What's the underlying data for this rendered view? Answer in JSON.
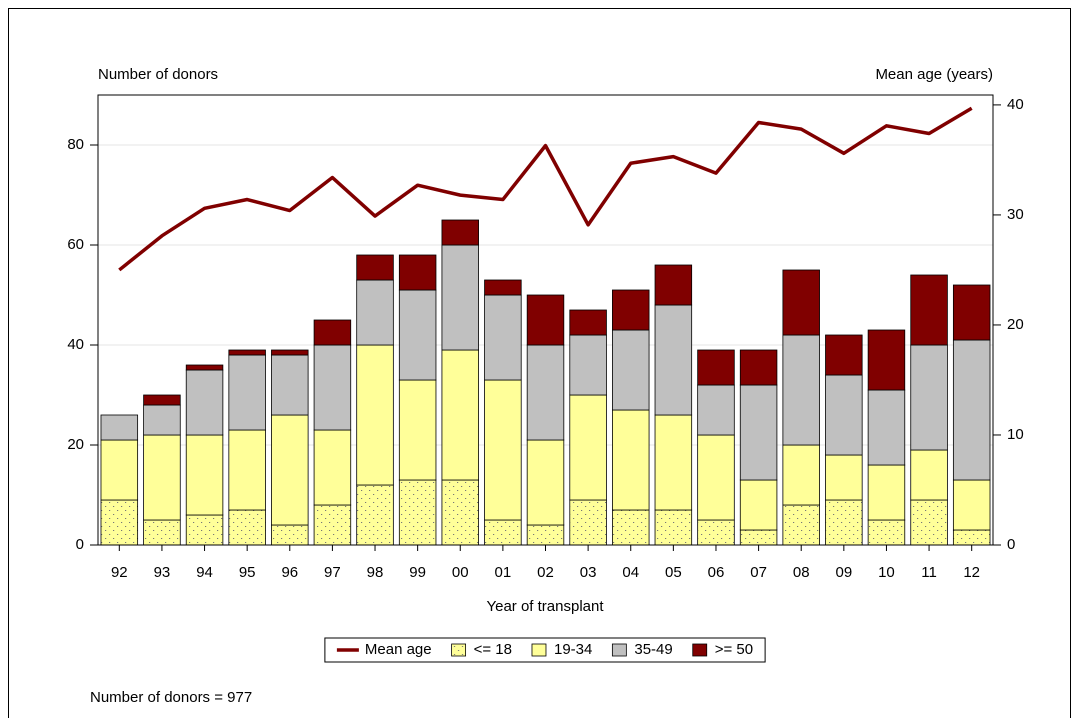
{
  "chart_data": {
    "type": "bar",
    "stacked": true,
    "y_label": "Number of donors",
    "y2_label": "Mean age (years)",
    "x_label": "Year of transplant",
    "footnote": "Number of donors = 977",
    "categories": [
      "92",
      "93",
      "94",
      "95",
      "96",
      "97",
      "98",
      "99",
      "00",
      "01",
      "02",
      "03",
      "04",
      "05",
      "06",
      "07",
      "08",
      "09",
      "10",
      "11",
      "12"
    ],
    "series": [
      {
        "name": "Mean age",
        "type": "line",
        "axis": "y2",
        "color": "#800000",
        "values": [
          25.0,
          28.1,
          30.6,
          31.4,
          30.4,
          33.4,
          29.9,
          32.7,
          31.8,
          31.4,
          36.3,
          29.1,
          34.7,
          35.3,
          33.8,
          38.4,
          37.8,
          35.6,
          38.1,
          37.4,
          39.7
        ]
      },
      {
        "name": "<= 18",
        "color": "#ffff99",
        "pattern": "dots",
        "values": [
          9,
          5,
          6,
          7,
          4,
          8,
          12,
          13,
          13,
          5,
          4,
          9,
          7,
          7,
          5,
          3,
          8,
          9,
          5,
          9,
          3
        ]
      },
      {
        "name": "19-34",
        "color": "#ffff99",
        "values": [
          12,
          17,
          16,
          16,
          22,
          15,
          28,
          20,
          26,
          28,
          17,
          21,
          20,
          19,
          17,
          10,
          12,
          9,
          11,
          10,
          10
        ]
      },
      {
        "name": "35-49",
        "color": "#c0c0c0",
        "values": [
          5,
          6,
          13,
          15,
          12,
          17,
          13,
          18,
          21,
          17,
          19,
          12,
          16,
          22,
          10,
          19,
          22,
          16,
          15,
          21,
          28
        ]
      },
      {
        "name": ">= 50",
        "color": "#800000",
        "values": [
          0,
          2,
          1,
          1,
          1,
          5,
          5,
          7,
          5,
          3,
          10,
          5,
          8,
          8,
          7,
          7,
          13,
          8,
          12,
          14,
          11
        ]
      }
    ],
    "ylim": [
      0,
      90
    ],
    "yticks": [
      0,
      20,
      40,
      60,
      80
    ],
    "y2lim": [
      0,
      40.9
    ],
    "y2ticks": [
      0,
      10,
      20,
      30,
      40
    ],
    "grid": true,
    "legend": "bottom"
  }
}
